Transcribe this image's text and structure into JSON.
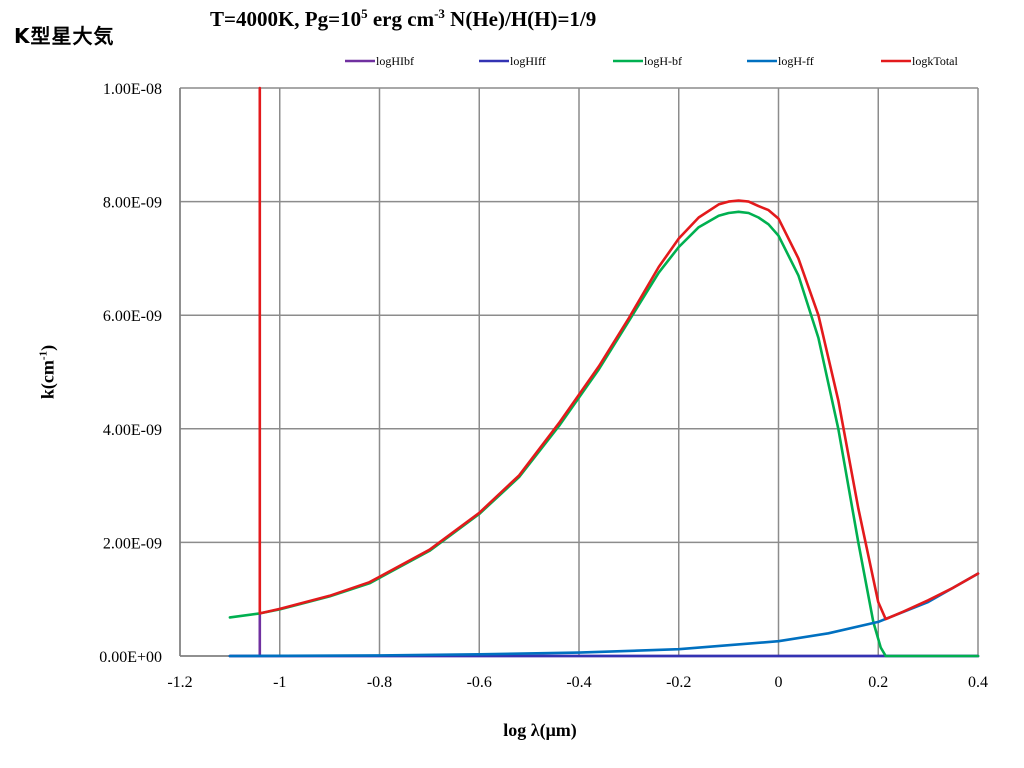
{
  "header": {
    "corner_label": "K型星大気"
  },
  "chart_data": {
    "type": "line",
    "title": "T=4000K, Pg=10^5 erg cm^-3 N(He)/H(H)=1/9",
    "title_parts": {
      "t": "T=4000K, Pg=10",
      "t_sup1": "5",
      "t_mid": " erg cm",
      "t_sup2": "-3",
      "t_end": " N(He)/H(H)=1/9"
    },
    "xlabel": "log λ(μm)",
    "ylabel": "k(cm^-1)",
    "ylabel_parts": {
      "a": "k(cm",
      "sup": "-1",
      "b": ")"
    },
    "xlim": [
      -1.2,
      0.4
    ],
    "ylim": [
      0,
      1e-08
    ],
    "xticks": [
      -1.2,
      -1.0,
      -0.8,
      -0.6,
      -0.4,
      -0.2,
      0,
      0.2,
      0.4
    ],
    "xtick_labels": [
      "-1.2",
      "-1",
      "-0.8",
      "-0.6",
      "-0.4",
      "-0.2",
      "0",
      "0.2",
      "0.4"
    ],
    "yticks": [
      0,
      2e-09,
      4e-09,
      6e-09,
      8e-09,
      1e-08
    ],
    "ytick_labels": [
      "0.00E+00",
      "2.00E-09",
      "4.00E-09",
      "6.00E-09",
      "8.00E-09",
      "1.00E-08"
    ],
    "grid": true,
    "legend_position": "top",
    "series": [
      {
        "name": "logHIbf",
        "color": "#7030a0",
        "x": [
          -1.1,
          -1.04,
          -1.04,
          -1.04,
          0.4
        ],
        "y": [
          0,
          0,
          7.5e-10,
          0,
          0
        ]
      },
      {
        "name": "logHIff",
        "color": "#3333b3",
        "x": [
          -1.1,
          -0.6,
          0,
          0.2,
          0.4
        ],
        "y": [
          0,
          0,
          0,
          0,
          0
        ]
      },
      {
        "name": "logH-bf",
        "color": "#00b050",
        "x": [
          -1.1,
          -1.04,
          -1.0,
          -0.9,
          -0.82,
          -0.7,
          -0.6,
          -0.52,
          -0.44,
          -0.36,
          -0.3,
          -0.24,
          -0.2,
          -0.16,
          -0.12,
          -0.1,
          -0.08,
          -0.06,
          -0.04,
          -0.02,
          0,
          0.04,
          0.08,
          0.12,
          0.16,
          0.19,
          0.205,
          0.215,
          0.24,
          0.4
        ],
        "y": [
          6.8e-10,
          7.5e-10,
          8.2e-10,
          1.05e-09,
          1.28e-09,
          1.85e-09,
          2.5e-09,
          3.15e-09,
          4.05e-09,
          5.05e-09,
          5.9e-09,
          6.75e-09,
          7.2e-09,
          7.55e-09,
          7.75e-09,
          7.8e-09,
          7.82e-09,
          7.8e-09,
          7.72e-09,
          7.6e-09,
          7.4e-09,
          6.7e-09,
          5.6e-09,
          4e-09,
          2e-09,
          6e-10,
          1.5e-10,
          0,
          0,
          0
        ]
      },
      {
        "name": "logH-ff",
        "color": "#0070c0",
        "x": [
          -1.1,
          -0.8,
          -0.6,
          -0.4,
          -0.2,
          0,
          0.1,
          0.2,
          0.3,
          0.4
        ],
        "y": [
          0,
          1e-11,
          3e-11,
          6e-11,
          1.2e-10,
          2.6e-10,
          4e-10,
          6e-10,
          9.5e-10,
          1.45e-09
        ]
      },
      {
        "name": "logkTotal",
        "color": "#e31a1c",
        "x": [
          -1.04,
          -1.04,
          -1.0,
          -0.9,
          -0.82,
          -0.7,
          -0.6,
          -0.52,
          -0.44,
          -0.36,
          -0.3,
          -0.24,
          -0.2,
          -0.16,
          -0.12,
          -0.1,
          -0.08,
          -0.06,
          -0.04,
          -0.02,
          0,
          0.04,
          0.08,
          0.12,
          0.16,
          0.2,
          0.215,
          0.25,
          0.3,
          0.35,
          0.4
        ],
        "y": [
          1e-08,
          7.5e-10,
          8.3e-10,
          1.06e-09,
          1.3e-09,
          1.87e-09,
          2.52e-09,
          3.18e-09,
          4.1e-09,
          5.1e-09,
          5.95e-09,
          6.85e-09,
          7.35e-09,
          7.72e-09,
          7.95e-09,
          8e-09,
          8.02e-09,
          8e-09,
          7.92e-09,
          7.85e-09,
          7.7e-09,
          7e-09,
          6e-09,
          4.5e-09,
          2.6e-09,
          9.5e-10,
          6.5e-10,
          7.8e-10,
          9.8e-10,
          1.2e-09,
          1.45e-09
        ]
      }
    ]
  }
}
